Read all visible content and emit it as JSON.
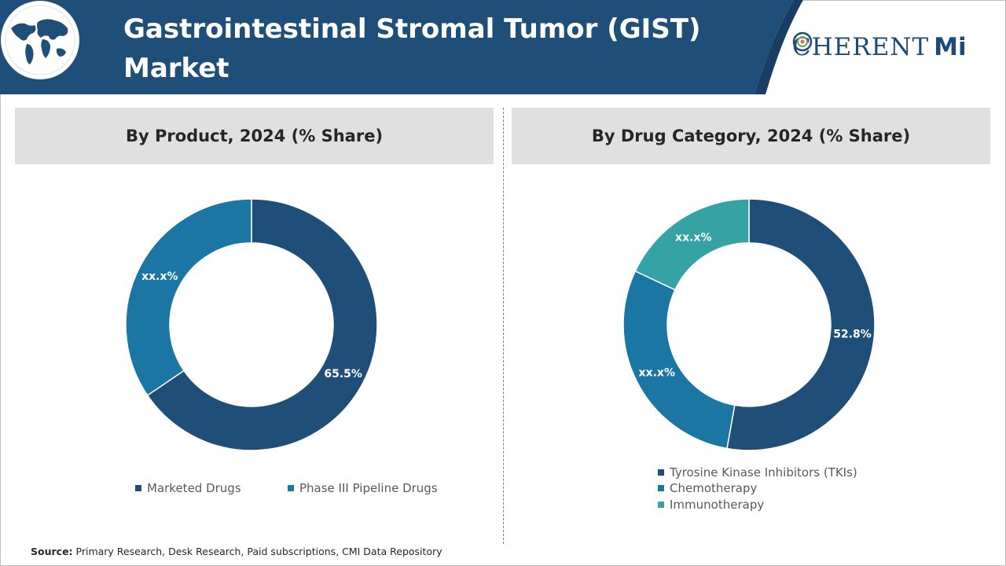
{
  "header": {
    "title_line1": "Gastrointestinal Stromal Tumor (GIST)",
    "title_line2": "Market",
    "logo_text_pre": "C",
    "logo_text_post": "HERENT",
    "logo_text_mi": "Mi",
    "globe_icon": "globe-icon",
    "colors": {
      "band": "#1f4e79",
      "band_dark": "#183f63"
    }
  },
  "source": {
    "label": "Source:",
    "text": "Primary Research, Desk Research, Paid subscriptions, CMI Data Repository"
  },
  "chart_data": [
    {
      "type": "pie",
      "title": "By Product, 2024 (% Share)",
      "donut": true,
      "categories": [
        "Marketed Drugs",
        "Phase III Pipeline Drugs"
      ],
      "values": [
        65.5,
        34.5
      ],
      "labels": [
        "65.5%",
        "xx.x%"
      ],
      "colors": [
        "#1f4e79",
        "#1c76a3"
      ],
      "legend": "bottom"
    },
    {
      "type": "pie",
      "title": "By Drug Category, 2024 (% Share)",
      "donut": true,
      "categories": [
        "Tyrosine Kinase Inhibitors (TKIs)",
        "Chemotherapy",
        "Immunotherapy"
      ],
      "values": [
        52.8,
        29.2,
        18.0
      ],
      "labels": [
        "52.8%",
        "xx.x%",
        "xx.x%"
      ],
      "colors": [
        "#1f4e79",
        "#1c76a3",
        "#35a3a3"
      ],
      "legend": "bottom"
    }
  ]
}
